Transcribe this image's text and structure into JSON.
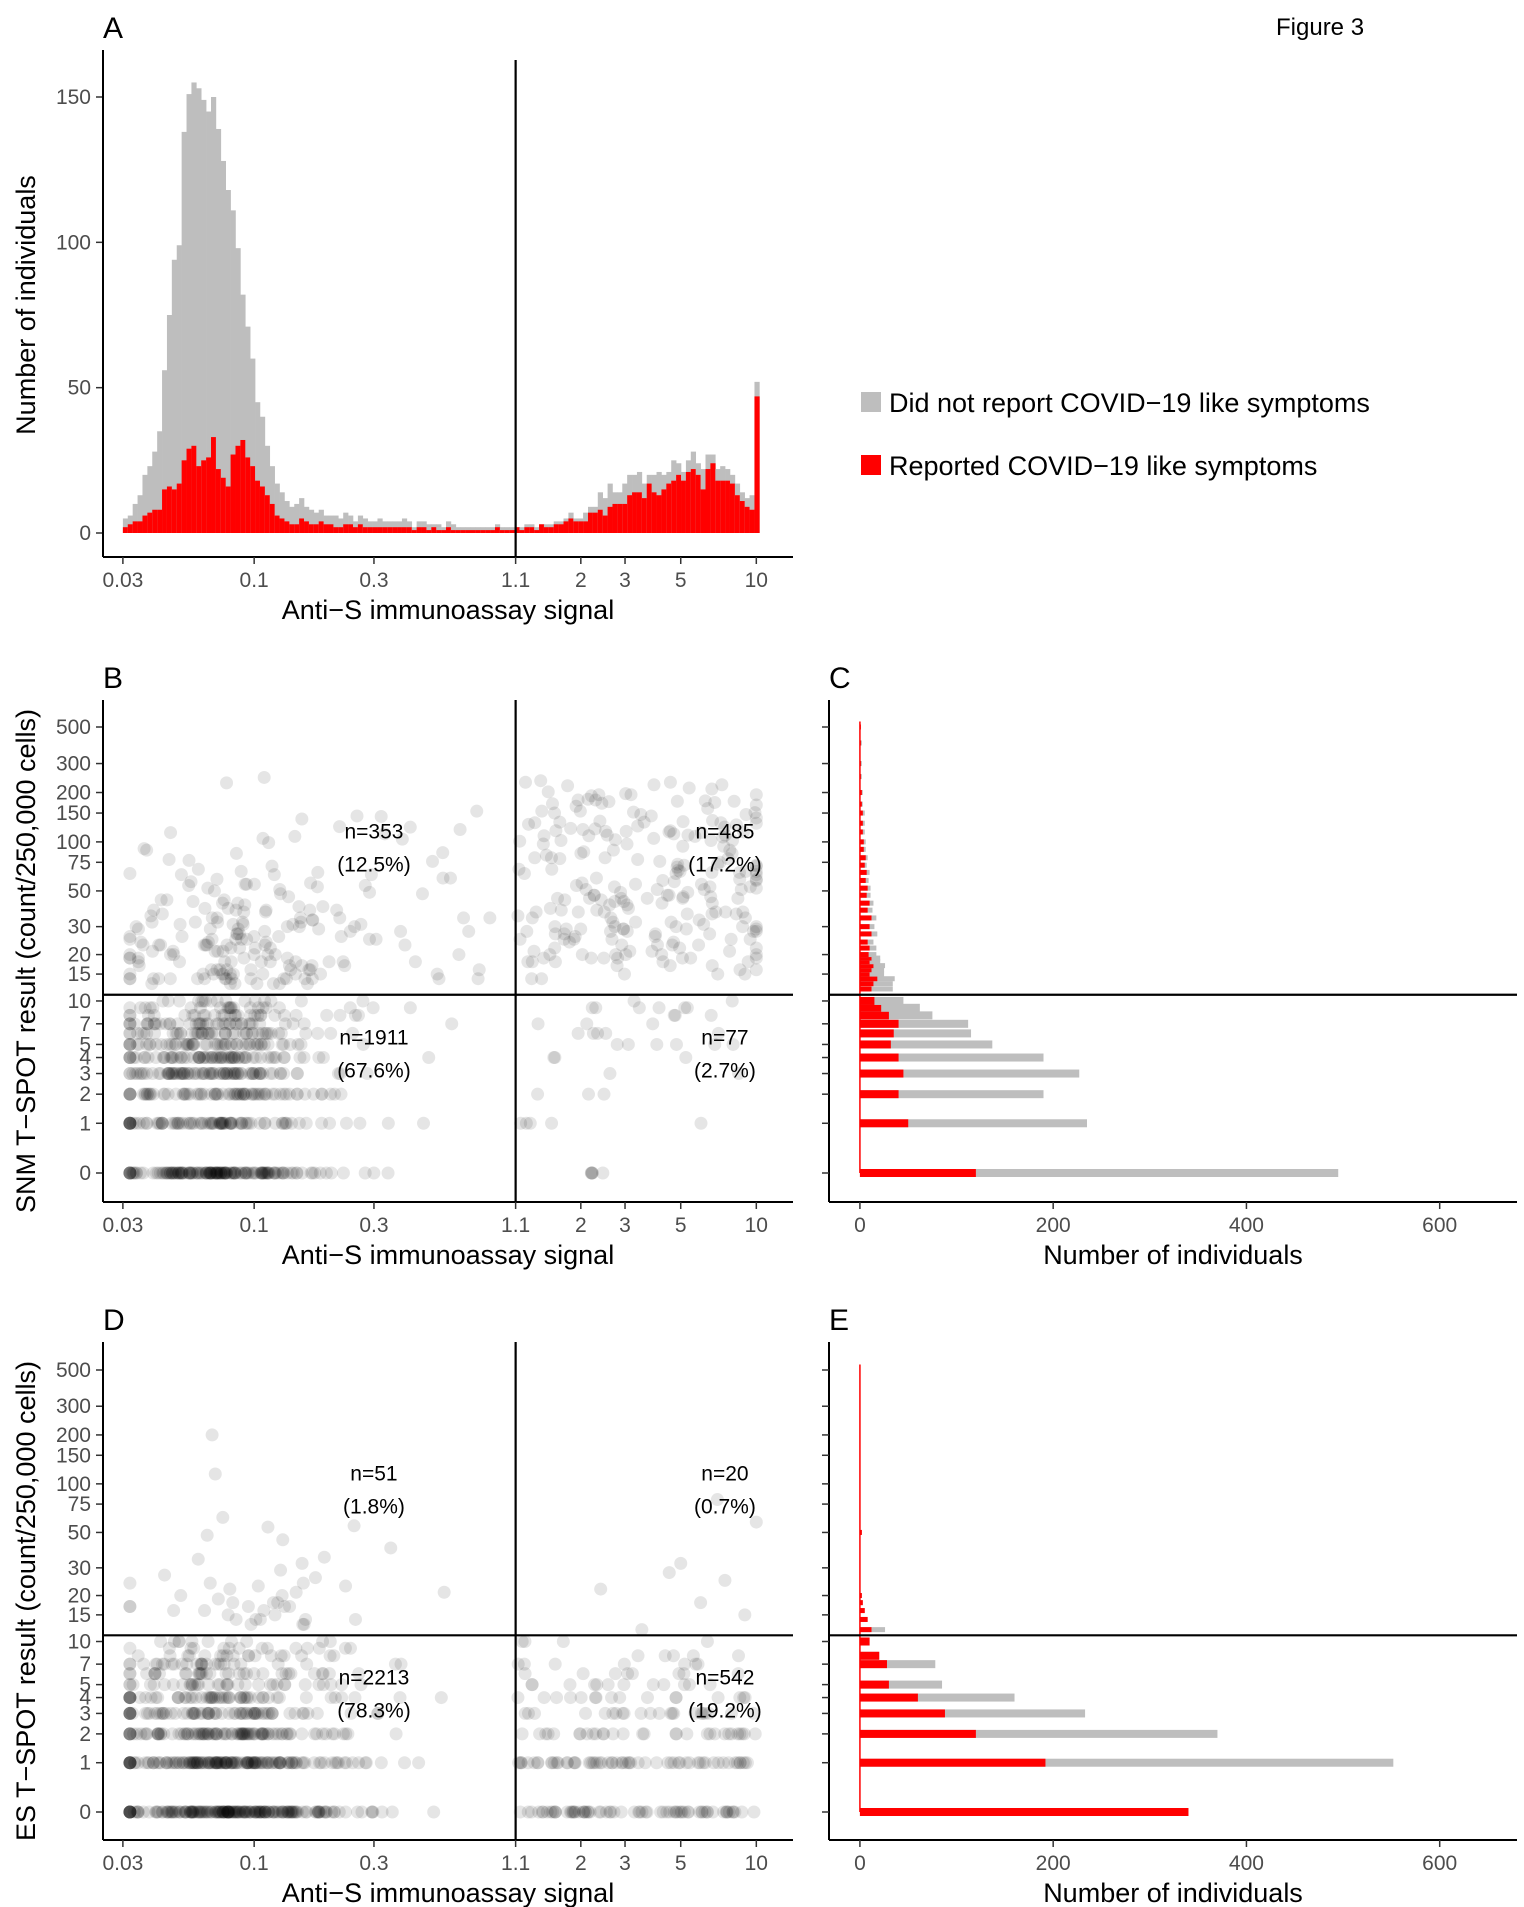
{
  "figure_label": "Figure 3",
  "colors": {
    "not_reported": "#bebebe",
    "reported": "#ff0000",
    "point": "#000000",
    "axis": "#000000"
  },
  "legend": {
    "items": [
      {
        "label": "Did not report COVID−19 like symptoms",
        "color": "#bebebe"
      },
      {
        "label": "Reported COVID−19 like symptoms",
        "color": "#ff0000"
      }
    ]
  },
  "chart_data": [
    {
      "panel": "A",
      "type": "bar",
      "subtype": "stacked-histogram",
      "xlabel": "Anti−S immunoassay signal",
      "ylabel": "Number of individuals",
      "xscale": "log",
      "xlim": [
        0.025,
        14
      ],
      "ylim": [
        0,
        155
      ],
      "x_ticks": [
        0.03,
        0.1,
        0.3,
        1.1,
        2,
        3,
        5,
        10
      ],
      "x_tick_labels": [
        "0.03",
        "0.1",
        "0.3",
        "1.1",
        "2",
        "3",
        "5",
        "10"
      ],
      "y_ticks": [
        0,
        50,
        100,
        150
      ],
      "y_tick_labels": [
        "0",
        "50",
        "100",
        "150"
      ],
      "vline_x": 1.1,
      "x_bin_left_edges_log_start": 0.03,
      "bin_width_log10": 0.0195,
      "series": [
        {
          "name": "Did not report COVID−19 like symptoms",
          "values": [
            3,
            3,
            6,
            9,
            14,
            16,
            20,
            27,
            41,
            59,
            79,
            82,
            113,
            122,
            125,
            130,
            124,
            119,
            117,
            117,
            109,
            102,
            84,
            68,
            50,
            45,
            37,
            27,
            24,
            17,
            13,
            11,
            9,
            7,
            6,
            7,
            7,
            5,
            5,
            4,
            4,
            3,
            3,
            4,
            3,
            4,
            3,
            2,
            3,
            3,
            2,
            2,
            3,
            2,
            2,
            2,
            2,
            3,
            2,
            1,
            2,
            2,
            2,
            1,
            2,
            1,
            2,
            2,
            1,
            1,
            1,
            1,
            1,
            1,
            1,
            1,
            1,
            1,
            1,
            1,
            0,
            1,
            1,
            1,
            1,
            0,
            1,
            1,
            1,
            1,
            1,
            2,
            1,
            1,
            3,
            2,
            2,
            6,
            6,
            8,
            4,
            4,
            7,
            7,
            6,
            7,
            5,
            3,
            6,
            8,
            5,
            4,
            7,
            4,
            3,
            4,
            6,
            4,
            7,
            5,
            3,
            4,
            5,
            4,
            3,
            4,
            3,
            3,
            5,
            5
          ]
        },
        {
          "name": "Reported COVID−19 like symptoms",
          "values": [
            2,
            3,
            4,
            4,
            6,
            7,
            8,
            8,
            15,
            16,
            15,
            17,
            25,
            29,
            30,
            23,
            25,
            26,
            33,
            22,
            19,
            16,
            27,
            30,
            32,
            26,
            23,
            18,
            16,
            13,
            10,
            6,
            5,
            4,
            3,
            3,
            5,
            4,
            3,
            3,
            4,
            3,
            3,
            2,
            2,
            3,
            3,
            2,
            3,
            2,
            2,
            2,
            2,
            2,
            2,
            2,
            2,
            2,
            2,
            1,
            2,
            2,
            1,
            2,
            1,
            1,
            2,
            1,
            1,
            1,
            1,
            1,
            1,
            1,
            1,
            1,
            2,
            1,
            1,
            1,
            2,
            1,
            2,
            2,
            1,
            3,
            2,
            2,
            3,
            3,
            4,
            5,
            4,
            4,
            4,
            7,
            7,
            8,
            6,
            9,
            10,
            10,
            10,
            13,
            14,
            14,
            12,
            17,
            14,
            13,
            15,
            17,
            18,
            20,
            18,
            21,
            22,
            20,
            15,
            22,
            24,
            18,
            18,
            18,
            17,
            13,
            11,
            9,
            8,
            47
          ]
        }
      ]
    },
    {
      "panel": "B",
      "type": "scatter",
      "xlabel": "Anti−S immunoassay signal",
      "ylabel": "SNM T−SPOT result (count/250,000 cells)",
      "xscale": "log",
      "yscale": "log1p",
      "xlim": [
        0.025,
        14
      ],
      "ylim": [
        0,
        540
      ],
      "x_ticks": [
        0.03,
        0.1,
        0.3,
        1.1,
        2,
        3,
        5,
        10
      ],
      "x_tick_labels": [
        "0.03",
        "0.1",
        "0.3",
        "1.1",
        "2",
        "3",
        "5",
        "10"
      ],
      "y_ticks": [
        0,
        1,
        2,
        3,
        4,
        5,
        7,
        10,
        15,
        20,
        30,
        50,
        75,
        100,
        150,
        200,
        300,
        500
      ],
      "y_tick_labels": [
        "0",
        "1",
        "2",
        "3",
        "4",
        "5",
        "7",
        "10",
        "15",
        "20",
        "30",
        "50",
        "75",
        "100",
        "150",
        "200",
        "300",
        "500"
      ],
      "vline_x": 1.1,
      "hline_y": 11,
      "quadrant_labels": [
        {
          "n": "n=353",
          "pct": "(12.5%)",
          "x": 0.3,
          "y": 105
        },
        {
          "n": "n=485",
          "pct": "(17.2%)",
          "x": 7.5,
          "y": 105
        },
        {
          "n": "n=1911",
          "pct": "(67.6%)",
          "x": 0.3,
          "y": 5
        },
        {
          "n": "n=77",
          "pct": "(2.7%)",
          "x": 7.5,
          "y": 5
        }
      ]
    },
    {
      "panel": "C",
      "type": "bar",
      "subtype": "horizontal-stacked",
      "xlabel": "Number of individuals",
      "xlim": [
        -32,
        680
      ],
      "x_ticks": [
        0,
        200,
        400,
        600
      ],
      "x_tick_labels": [
        "0",
        "200",
        "400",
        "600"
      ],
      "hline_y": 11,
      "y": [
        0,
        1,
        2,
        3,
        4,
        5,
        6,
        7,
        8,
        9,
        10,
        12,
        13,
        14,
        15,
        16,
        17,
        18,
        19,
        20,
        22,
        24,
        27,
        30,
        34,
        38,
        42,
        47,
        52,
        58,
        65,
        72,
        80,
        90,
        100,
        115,
        130,
        150,
        170,
        200,
        250,
        300,
        400,
        500
      ],
      "series": [
        {
          "name": "Did not report COVID−19 like symptoms",
          "values": [
            375,
            185,
            150,
            182,
            150,
            105,
            80,
            72,
            45,
            40,
            30,
            22,
            20,
            18,
            15,
            13,
            12,
            11,
            9,
            8,
            7,
            6,
            6,
            5,
            5,
            5,
            4,
            4,
            3,
            3,
            3,
            2,
            2,
            2,
            2,
            2,
            2,
            2,
            1,
            1,
            1,
            1,
            1,
            0
          ]
        },
        {
          "name": "Reported COVID−19 like symptoms",
          "values": [
            120,
            50,
            40,
            45,
            40,
            32,
            35,
            40,
            30,
            22,
            15,
            12,
            14,
            18,
            10,
            12,
            14,
            10,
            12,
            9,
            10,
            8,
            12,
            10,
            12,
            8,
            10,
            7,
            8,
            6,
            7,
            5,
            6,
            4,
            4,
            3,
            3,
            3,
            2,
            2,
            1,
            1,
            1,
            1
          ]
        }
      ]
    },
    {
      "panel": "D",
      "type": "scatter",
      "xlabel": "Anti−S immunoassay signal",
      "ylabel": "ES T−SPOT result (count/250,000 cells)",
      "xscale": "log",
      "yscale": "log1p",
      "xlim": [
        0.025,
        14
      ],
      "ylim": [
        0,
        540
      ],
      "x_ticks": [
        0.03,
        0.1,
        0.3,
        1.1,
        2,
        3,
        5,
        10
      ],
      "x_tick_labels": [
        "0.03",
        "0.1",
        "0.3",
        "1.1",
        "2",
        "3",
        "5",
        "10"
      ],
      "y_ticks": [
        0,
        1,
        2,
        3,
        4,
        5,
        7,
        10,
        15,
        20,
        30,
        50,
        75,
        100,
        150,
        200,
        300,
        500
      ],
      "y_tick_labels": [
        "0",
        "1",
        "2",
        "3",
        "4",
        "5",
        "7",
        "10",
        "15",
        "20",
        "30",
        "50",
        "75",
        "100",
        "150",
        "200",
        "300",
        "500"
      ],
      "vline_x": 1.1,
      "hline_y": 11,
      "quadrant_labels": [
        {
          "n": "n=51",
          "pct": "(1.8%)",
          "x": 0.3,
          "y": 105
        },
        {
          "n": "n=20",
          "pct": "(0.7%)",
          "x": 7.5,
          "y": 105
        },
        {
          "n": "n=2213",
          "pct": "(78.3%)",
          "x": 0.3,
          "y": 5
        },
        {
          "n": "n=542",
          "pct": "(19.2%)",
          "x": 7.5,
          "y": 5
        }
      ]
    },
    {
      "panel": "E",
      "type": "bar",
      "subtype": "horizontal-stacked",
      "xlabel": "Number of individuals",
      "xlim": [
        -32,
        680
      ],
      "x_ticks": [
        0,
        200,
        400,
        600
      ],
      "x_tick_labels": [
        "0",
        "200",
        "400",
        "600"
      ],
      "hline_y": 11,
      "y": [
        0,
        1,
        2,
        3,
        4,
        5,
        7,
        8,
        10,
        12,
        14,
        16,
        18,
        20,
        50
      ],
      "series": [
        {
          "name": "Did not report COVID−19 like symptoms",
          "values": [
            0,
            360,
            250,
            145,
            100,
            55,
            50,
            0,
            0,
            14,
            0,
            0,
            0,
            0,
            0
          ]
        },
        {
          "name": "Reported COVID−19 like symptoms",
          "values": [
            340,
            192,
            120,
            88,
            60,
            30,
            28,
            20,
            10,
            12,
            8,
            5,
            3,
            2,
            2
          ]
        }
      ]
    }
  ]
}
